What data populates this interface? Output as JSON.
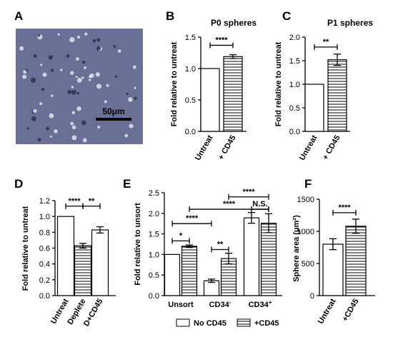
{
  "colors": {
    "bar_fill": "#ffffff",
    "stripe": "#000000",
    "micrograph_bg": "#6a6f96",
    "scale_bar": "#000000"
  },
  "image_panel": {
    "letter": "A",
    "scale_text": "50μm"
  },
  "legend": {
    "items": [
      {
        "label": "No CD45",
        "pattern": "solid"
      },
      {
        "label": "+CD45",
        "pattern": "stripes"
      }
    ]
  },
  "chart_data": [
    {
      "id": "B",
      "type": "bar",
      "letter": "B",
      "title": "P0 spheres",
      "ylabel": "Fold relative to untreat",
      "ylim": [
        0,
        1.5
      ],
      "yticks": [
        "0.0",
        "0.5",
        "1.0",
        "1.5"
      ],
      "categories": [
        "Untreat",
        "+ CD45"
      ],
      "values": [
        1.0,
        1.19
      ],
      "errors": [
        0,
        0.03
      ],
      "patterns": [
        "solid",
        "stripes"
      ],
      "significance": [
        {
          "from": 0,
          "to": 1,
          "label": "****",
          "y": 1.37
        }
      ]
    },
    {
      "id": "C",
      "type": "bar",
      "letter": "C",
      "title": "P1 spheres",
      "ylabel": "Fold relative to untreat",
      "ylim": [
        0,
        2.0
      ],
      "yticks": [
        "0.0",
        "0.5",
        "1.0",
        "1.5",
        "2.0"
      ],
      "categories": [
        "Untreat",
        "+ CD45"
      ],
      "values": [
        1.0,
        1.52
      ],
      "errors": [
        0,
        0.12
      ],
      "patterns": [
        "solid",
        "stripes"
      ],
      "significance": [
        {
          "from": 0,
          "to": 1,
          "label": "**",
          "y": 1.79
        }
      ]
    },
    {
      "id": "D",
      "type": "bar",
      "letter": "D",
      "title": "",
      "ylabel": "Fold relative to untreat",
      "ylim": [
        0,
        1.2
      ],
      "yticks": [
        "0.0",
        "0.2",
        "0.4",
        "0.6",
        "0.8",
        "1.0",
        "1.2"
      ],
      "categories": [
        "Untreat",
        "Deplete",
        "D+CD45"
      ],
      "values": [
        1.0,
        0.63,
        0.83
      ],
      "errors": [
        0,
        0.03,
        0.04
      ],
      "patterns": [
        "solid",
        "stripes",
        "solid"
      ],
      "significance": [
        {
          "from": 0,
          "to": 1,
          "label": "****",
          "y": 1.13
        },
        {
          "from": 1,
          "to": 2,
          "label": "**",
          "y": 1.13
        }
      ]
    },
    {
      "id": "E",
      "type": "bar",
      "letter": "E",
      "title": "",
      "ylabel": "Fold relative to unsort",
      "ylim": [
        0,
        2.5
      ],
      "yticks": [
        "0.0",
        "0.5",
        "1.0",
        "1.5",
        "2.0",
        "2.5"
      ],
      "groups": [
        {
          "label": "Unsort",
          "sup": ""
        },
        {
          "label": "CD34",
          "sup": "-"
        },
        {
          "label": "CD34",
          "sup": "+"
        }
      ],
      "series": [
        {
          "name": "No CD45",
          "values": [
            1.0,
            0.36,
            1.89
          ],
          "errors": [
            0,
            0.04,
            0.13
          ]
        },
        {
          "name": "+CD45",
          "values": [
            1.2,
            0.9,
            1.76
          ],
          "errors": [
            0.03,
            0.13,
            0.23
          ]
        }
      ],
      "significance": [
        {
          "from": 0,
          "to": 1,
          "label": "*",
          "y": 1.33
        },
        {
          "from": 0,
          "to": 2,
          "label": "****",
          "y": 1.75
        },
        {
          "from": 2,
          "to": 3,
          "label": "**",
          "y": 1.12
        },
        {
          "from": 1,
          "to": 5,
          "label": "****",
          "y": 2.1
        },
        {
          "from": 3,
          "to": 5,
          "label": "****",
          "y": 2.4
        },
        {
          "from": 4,
          "to": 5,
          "label": "N.S.",
          "y": 2.1
        }
      ]
    },
    {
      "id": "F",
      "type": "bar",
      "letter": "F",
      "title": "",
      "ylabel": "Sphere area (μm²)",
      "ylim": [
        0,
        1500
      ],
      "yticks": [
        "0",
        "500",
        "1000",
        "1500"
      ],
      "categories": [
        "Untreat",
        "+CD45"
      ],
      "values": [
        800,
        1080
      ],
      "errors": [
        85,
        110
      ],
      "patterns": [
        "solid",
        "stripes"
      ],
      "significance": [
        {
          "from": 0,
          "to": 1,
          "label": "****",
          "y": 1290
        }
      ]
    }
  ]
}
